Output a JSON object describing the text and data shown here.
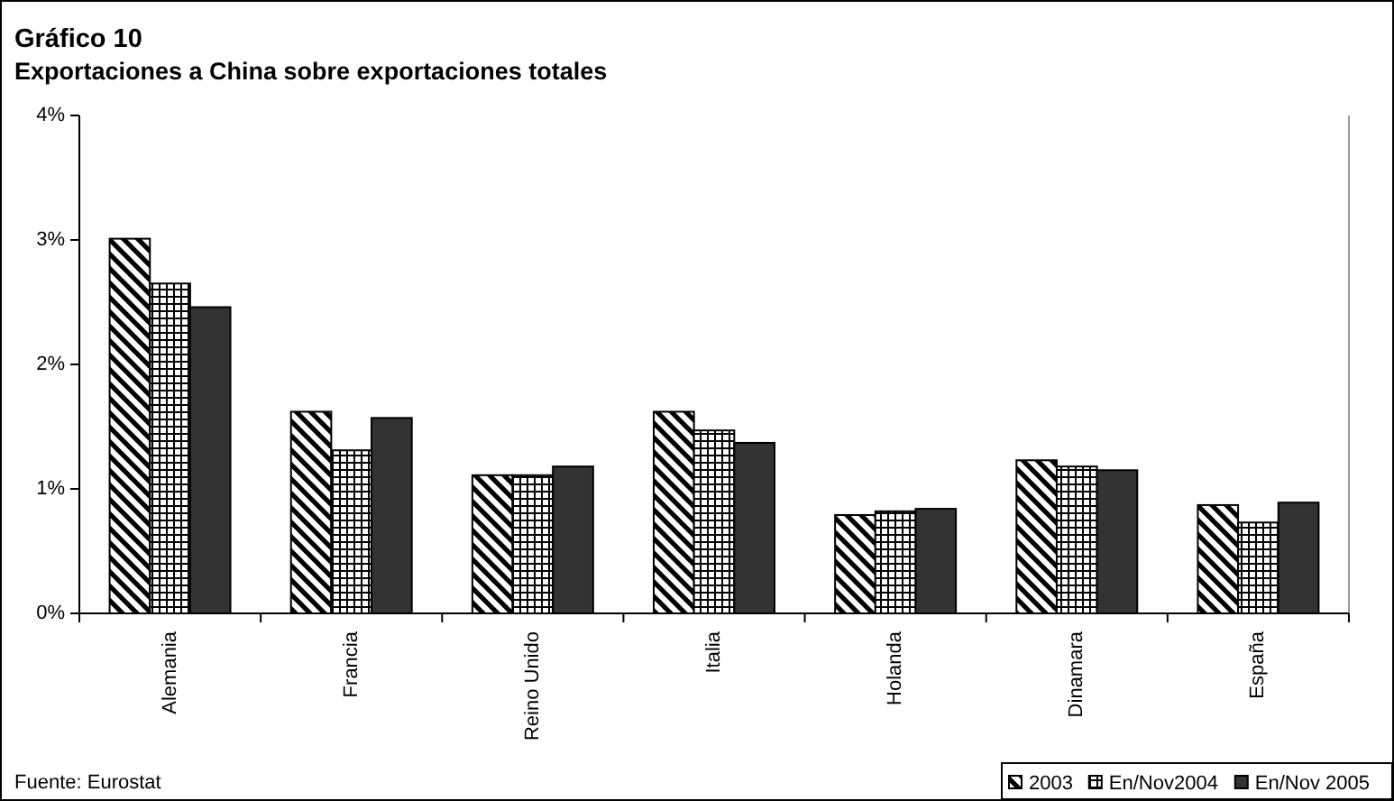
{
  "chart_data": {
    "type": "bar",
    "title": "Gráfico 10",
    "subtitle": "Exportaciones a China sobre exportaciones totales",
    "categories": [
      "Alemania",
      "Francia",
      "Reino Unido",
      "Italia",
      "Holanda",
      "Dinamara",
      "España"
    ],
    "series": [
      {
        "name": "2003",
        "color": "#000000",
        "values": [
          3.01,
          1.62,
          1.11,
          1.62,
          0.79,
          1.23,
          0.87
        ]
      },
      {
        "name": "En/Nov2004",
        "color": "#000000",
        "values": [
          2.65,
          1.31,
          1.11,
          1.47,
          0.82,
          1.18,
          0.73
        ]
      },
      {
        "name": "En/Nov 2005",
        "color": "#333333",
        "values": [
          2.46,
          1.57,
          1.18,
          1.37,
          0.84,
          1.15,
          0.89
        ]
      }
    ],
    "ylim": [
      0,
      4
    ],
    "yticks": [
      {
        "value": 0,
        "label": "0%"
      },
      {
        "value": 1,
        "label": "1%"
      },
      {
        "value": 2,
        "label": "2%"
      },
      {
        "value": 3,
        "label": "3%"
      },
      {
        "value": 4,
        "label": "4%"
      }
    ],
    "legend": "bottom right",
    "annotations": [
      "Fuente: Eurostat"
    ]
  }
}
